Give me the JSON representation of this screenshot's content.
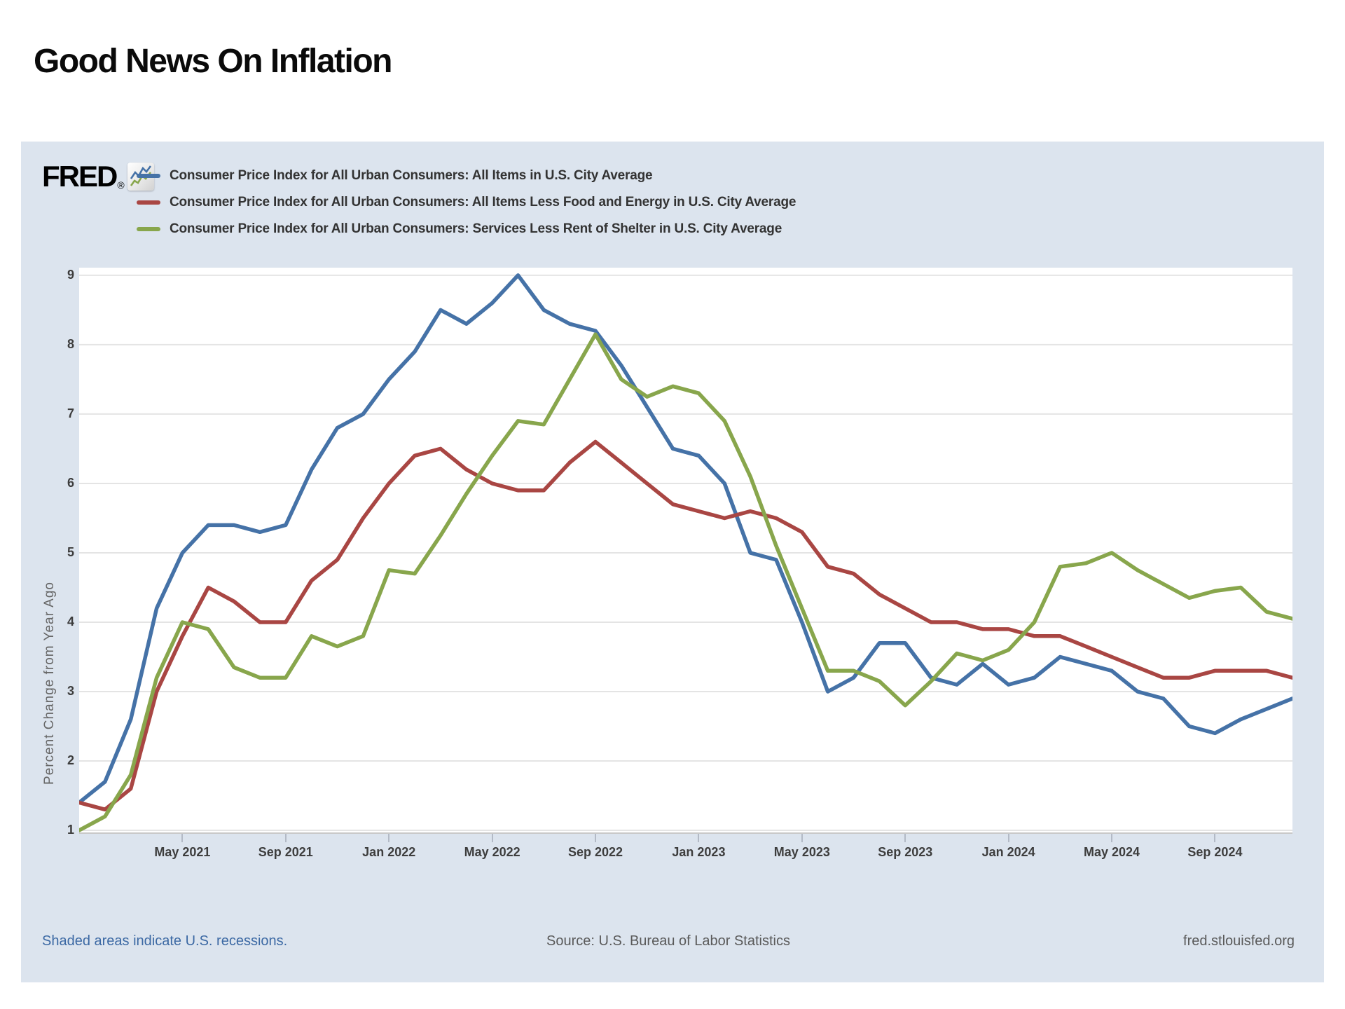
{
  "title": "Good News On Inflation",
  "fred": {
    "logo": "FRED",
    "registered": "®"
  },
  "footer": {
    "recessions_note": "Shaded areas indicate U.S. recessions.",
    "source": "Source: U.S. Bureau of Labor Statistics",
    "site": "fred.stlouisfed.org"
  },
  "colors": {
    "panel_bg": "#dce4ee",
    "plot_bg": "#ffffff",
    "gridline": "#e4e4e4",
    "axis_line": "#c8c8c8",
    "tick_mark": "#b3bac6",
    "blue": "#4572a7",
    "red": "#a94643",
    "green": "#88a64c"
  },
  "chart_data": {
    "type": "line",
    "title": "",
    "xlabel": "",
    "ylabel": "Percent Change from Year Ago",
    "ylim": [
      0.95,
      9.11
    ],
    "yticks": [
      1,
      2,
      3,
      4,
      5,
      6,
      7,
      8,
      9
    ],
    "grid": true,
    "legend_position": "top-left",
    "x_start": "Jan 2021",
    "x_end": "Dec 2024",
    "x_frequency": "monthly",
    "n_points": 48,
    "xticks": [
      {
        "label": "May 2021",
        "index": 4
      },
      {
        "label": "Sep 2021",
        "index": 8
      },
      {
        "label": "Jan 2022",
        "index": 12
      },
      {
        "label": "May 2022",
        "index": 16
      },
      {
        "label": "Sep 2022",
        "index": 20
      },
      {
        "label": "Jan 2023",
        "index": 24
      },
      {
        "label": "May 2023",
        "index": 28
      },
      {
        "label": "Sep 2023",
        "index": 32
      },
      {
        "label": "Jan 2024",
        "index": 36
      },
      {
        "label": "May 2024",
        "index": 40
      },
      {
        "label": "Sep 2024",
        "index": 44
      }
    ],
    "series": [
      {
        "name": "Consumer Price Index for All Urban Consumers: All Items in U.S. City Average",
        "color": "#4572a7",
        "values": [
          1.4,
          1.7,
          2.6,
          4.2,
          5.0,
          5.4,
          5.4,
          5.3,
          5.4,
          6.2,
          6.8,
          7.0,
          7.5,
          7.9,
          8.5,
          8.3,
          8.6,
          9.0,
          8.5,
          8.3,
          8.2,
          7.7,
          7.1,
          6.5,
          6.4,
          6.0,
          5.0,
          4.9,
          4.0,
          3.0,
          3.2,
          3.7,
          3.7,
          3.2,
          3.1,
          3.4,
          3.1,
          3.2,
          3.5,
          3.4,
          3.3,
          3.0,
          2.9,
          2.5,
          2.4,
          2.6,
          2.75,
          2.9
        ]
      },
      {
        "name": "Consumer Price Index for All Urban Consumers: All Items Less Food and Energy in U.S. City Average",
        "color": "#a94643",
        "values": [
          1.4,
          1.3,
          1.6,
          3.0,
          3.8,
          4.5,
          4.3,
          4.0,
          4.0,
          4.6,
          4.9,
          5.5,
          6.0,
          6.4,
          6.5,
          6.2,
          6.0,
          5.9,
          5.9,
          6.3,
          6.6,
          6.3,
          6.0,
          5.7,
          5.6,
          5.5,
          5.6,
          5.5,
          5.3,
          4.8,
          4.7,
          4.4,
          4.2,
          4.0,
          4.0,
          3.9,
          3.9,
          3.8,
          3.8,
          3.65,
          3.5,
          3.35,
          3.2,
          3.2,
          3.3,
          3.3,
          3.3,
          3.2
        ]
      },
      {
        "name": "Consumer Price Index for All Urban Consumers: Services Less Rent of Shelter in U.S. City Average",
        "color": "#88a64c",
        "values": [
          1.0,
          1.2,
          1.8,
          3.2,
          4.0,
          3.9,
          3.35,
          3.2,
          3.2,
          3.8,
          3.65,
          3.8,
          4.75,
          4.7,
          5.25,
          5.85,
          6.4,
          6.9,
          6.85,
          7.5,
          8.15,
          7.5,
          7.25,
          7.4,
          7.3,
          6.9,
          6.1,
          5.1,
          4.2,
          3.3,
          3.3,
          3.15,
          2.8,
          3.15,
          3.55,
          3.45,
          3.6,
          4.0,
          4.8,
          4.85,
          5.0,
          4.75,
          4.55,
          4.35,
          4.45,
          4.5,
          4.15,
          4.05
        ]
      }
    ]
  }
}
